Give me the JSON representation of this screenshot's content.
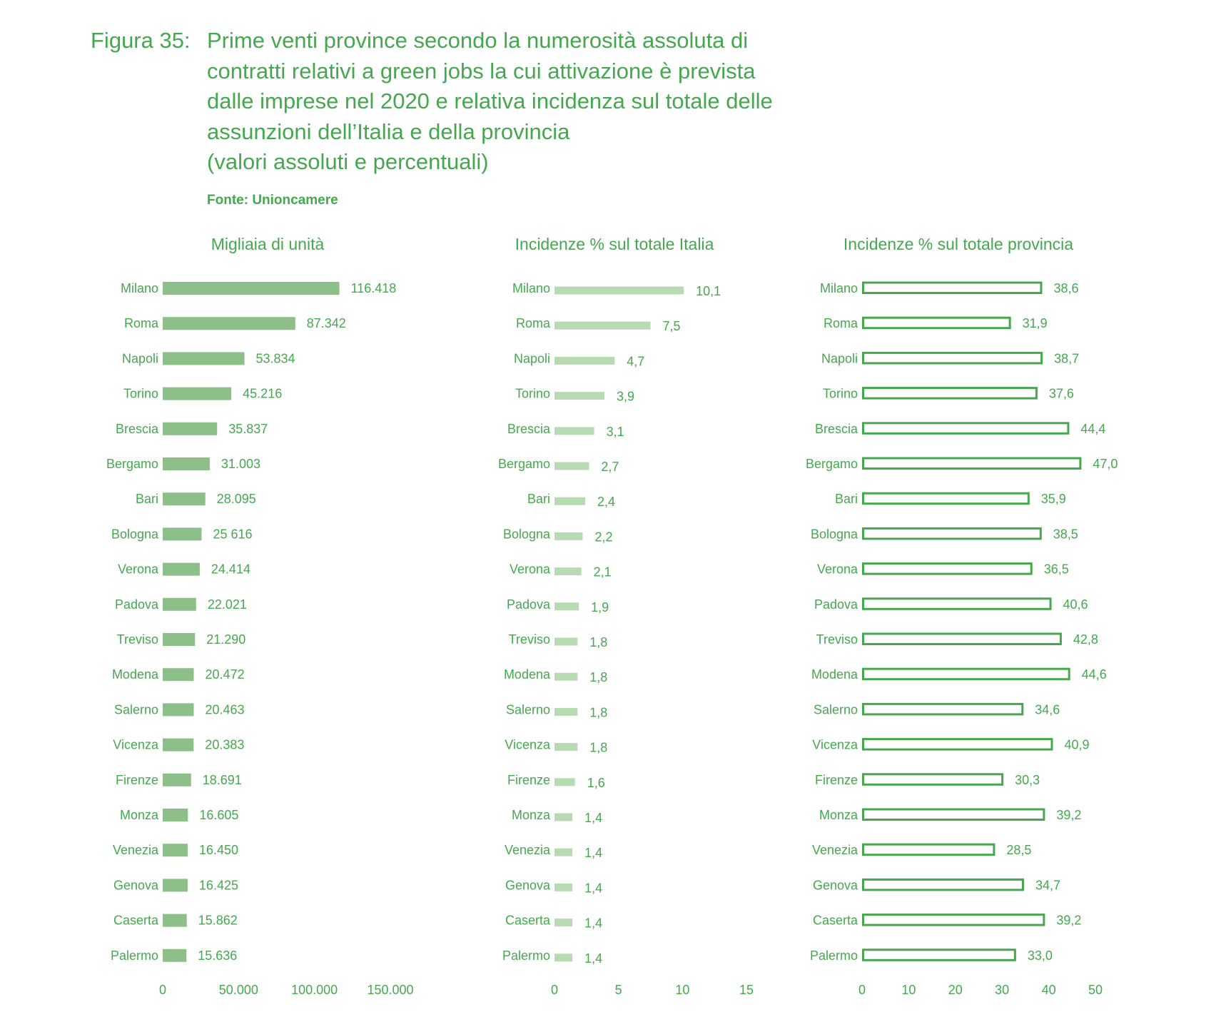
{
  "figure": {
    "label": "Figura 35:",
    "title_lines": [
      "Prime venti province secondo la numerosità assoluta di",
      "contratti relativi a green jobs la cui attivazione è prevista",
      "dalle imprese nel 2020 e relativa incidenza sul totale delle",
      "assunzioni dell’Italia e della provincia",
      "(valori assoluti e percentuali)"
    ],
    "source": "Fonte: Unioncamere"
  },
  "colors": {
    "text": "#45a84f",
    "bar1": "#8dbf88",
    "bar2": "#b8dab3",
    "bar3_stroke": "#46a84e"
  },
  "chart_data": [
    {
      "type": "bar",
      "orientation": "horizontal",
      "title": "Migliaia di unità",
      "categories": [
        "Milano",
        "Roma",
        "Napoli",
        "Torino",
        "Brescia",
        "Bergamo",
        "Bari",
        "Bologna",
        "Verona",
        "Padova",
        "Treviso",
        "Modena",
        "Salerno",
        "Vicenza",
        "Firenze",
        "Monza",
        "Venezia",
        "Genova",
        "Caserta",
        "Palermo"
      ],
      "values": [
        116418,
        87342,
        53834,
        45216,
        35837,
        31003,
        28095,
        25616,
        24414,
        22021,
        21290,
        20472,
        20463,
        20383,
        18691,
        16605,
        16450,
        16425,
        15862,
        15636
      ],
      "value_labels": [
        "116.418",
        "87.342",
        "53.834",
        "45.216",
        "35.837",
        "31.003",
        "28.095",
        "25 616",
        "24.414",
        "22.021",
        "21.290",
        "20.472",
        "20.463",
        "20.383",
        "18.691",
        "16.605",
        "16.450",
        "16.425",
        "15.862",
        "15.636"
      ],
      "xlim": [
        0,
        150000
      ],
      "ticks": [
        0,
        50000,
        100000,
        150000
      ],
      "tick_labels": [
        "0",
        "50.000",
        "100.000",
        "150.000"
      ],
      "style": "filled"
    },
    {
      "type": "bar",
      "orientation": "horizontal",
      "title": "Incidenze % sul totale Italia",
      "categories": [
        "Milano",
        "Roma",
        "Napoli",
        "Torino",
        "Brescia",
        "Bergamo",
        "Bari",
        "Bologna",
        "Verona",
        "Padova",
        "Treviso",
        "Modena",
        "Salerno",
        "Vicenza",
        "Firenze",
        "Monza",
        "Venezia",
        "Genova",
        "Caserta",
        "Palermo"
      ],
      "values": [
        10.1,
        7.5,
        4.7,
        3.9,
        3.1,
        2.7,
        2.4,
        2.2,
        2.1,
        1.9,
        1.8,
        1.8,
        1.8,
        1.8,
        1.6,
        1.4,
        1.4,
        1.4,
        1.4,
        1.4
      ],
      "value_labels": [
        "10,1",
        "7,5",
        "4,7",
        "3,9",
        "3,1",
        "2,7",
        "2,4",
        "2,2",
        "2,1",
        "1,9",
        "1,8",
        "1,8",
        "1,8",
        "1,8",
        "1,6",
        "1,4",
        "1,4",
        "1,4",
        "1,4",
        "1,4"
      ],
      "xlim": [
        0,
        15
      ],
      "ticks": [
        0,
        5,
        10,
        15
      ],
      "tick_labels": [
        "0",
        "5",
        "10",
        "15"
      ],
      "style": "filled-light"
    },
    {
      "type": "bar",
      "orientation": "horizontal",
      "title": "Incidenze % sul totale provincia",
      "categories": [
        "Milano",
        "Roma",
        "Napoli",
        "Torino",
        "Brescia",
        "Bergamo",
        "Bari",
        "Bologna",
        "Verona",
        "Padova",
        "Treviso",
        "Modena",
        "Salerno",
        "Vicenza",
        "Firenze",
        "Monza",
        "Venezia",
        "Genova",
        "Caserta",
        "Palermo"
      ],
      "values": [
        38.6,
        31.9,
        38.7,
        37.6,
        44.4,
        47.0,
        35.9,
        38.5,
        36.5,
        40.6,
        42.8,
        44.6,
        34.6,
        40.9,
        30.3,
        39.2,
        28.5,
        34.7,
        39.2,
        33.0
      ],
      "value_labels": [
        "38,6",
        "31,9",
        "38,7",
        "37,6",
        "44,4",
        "47,0",
        "35,9",
        "38,5",
        "36,5",
        "40,6",
        "42,8",
        "44,6",
        "34,6",
        "40,9",
        "30,3",
        "39,2",
        "28,5",
        "34,7",
        "39,2",
        "33,0"
      ],
      "xlim": [
        0,
        50
      ],
      "ticks": [
        0,
        10,
        20,
        30,
        40,
        50
      ],
      "tick_labels": [
        "0",
        "10",
        "20",
        "30",
        "40",
        "50"
      ],
      "style": "outline"
    }
  ]
}
